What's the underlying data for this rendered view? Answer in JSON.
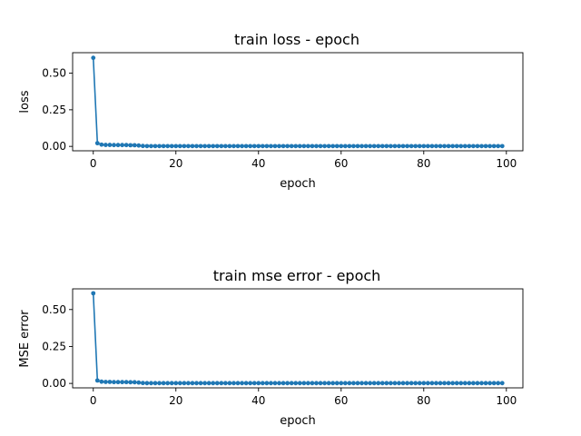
{
  "chart_data": [
    {
      "type": "line",
      "title": "train loss - epoch",
      "xlabel": "epoch",
      "ylabel": "loss",
      "xlim": [
        -5,
        104
      ],
      "ylim": [
        -0.03,
        0.64
      ],
      "xticks": [
        0,
        20,
        40,
        60,
        80,
        100
      ],
      "xtick_labels": [
        "0",
        "20",
        "40",
        "60",
        "80",
        "100"
      ],
      "yticks": [
        0.0,
        0.25,
        0.5
      ],
      "ytick_labels": [
        "0.00",
        "0.25",
        "0.50"
      ],
      "grid": false,
      "color": "#1f77b4",
      "series": [
        {
          "x": [
            0,
            1,
            2,
            3,
            4,
            5,
            6,
            7,
            8,
            9,
            10,
            11,
            12,
            13,
            14,
            15,
            16,
            17,
            18,
            19,
            20,
            21,
            22,
            23,
            24,
            25,
            26,
            27,
            28,
            29,
            30,
            31,
            32,
            33,
            34,
            35,
            36,
            37,
            38,
            39,
            40,
            41,
            42,
            43,
            44,
            45,
            46,
            47,
            48,
            49,
            50,
            51,
            52,
            53,
            54,
            55,
            56,
            57,
            58,
            59,
            60,
            61,
            62,
            63,
            64,
            65,
            66,
            67,
            68,
            69,
            70,
            71,
            72,
            73,
            74,
            75,
            76,
            77,
            78,
            79,
            80,
            81,
            82,
            83,
            84,
            85,
            86,
            87,
            88,
            89,
            90,
            91,
            92,
            93,
            94,
            95,
            96,
            97,
            98,
            99
          ],
          "values": [
            0.605,
            0.022,
            0.012,
            0.01,
            0.01,
            0.009,
            0.009,
            0.009,
            0.009,
            0.008,
            0.008,
            0.006,
            0.003,
            0.002,
            0.002,
            0.002,
            0.002,
            0.002,
            0.002,
            0.002,
            0.002,
            0.002,
            0.002,
            0.002,
            0.002,
            0.002,
            0.002,
            0.002,
            0.002,
            0.002,
            0.002,
            0.002,
            0.002,
            0.002,
            0.002,
            0.002,
            0.002,
            0.002,
            0.002,
            0.002,
            0.002,
            0.002,
            0.002,
            0.002,
            0.002,
            0.002,
            0.002,
            0.002,
            0.002,
            0.002,
            0.002,
            0.002,
            0.002,
            0.002,
            0.002,
            0.002,
            0.002,
            0.002,
            0.002,
            0.002,
            0.002,
            0.002,
            0.002,
            0.002,
            0.002,
            0.002,
            0.002,
            0.002,
            0.002,
            0.002,
            0.002,
            0.002,
            0.002,
            0.002,
            0.002,
            0.002,
            0.002,
            0.002,
            0.002,
            0.002,
            0.002,
            0.002,
            0.002,
            0.002,
            0.002,
            0.002,
            0.002,
            0.002,
            0.002,
            0.002,
            0.002,
            0.002,
            0.002,
            0.002,
            0.002,
            0.002,
            0.002,
            0.002,
            0.002,
            0.002
          ]
        }
      ]
    },
    {
      "type": "line",
      "title": "train mse error - epoch",
      "xlabel": "epoch",
      "ylabel": "MSE error",
      "xlim": [
        -5,
        104
      ],
      "ylim": [
        -0.03,
        0.64
      ],
      "xticks": [
        0,
        20,
        40,
        60,
        80,
        100
      ],
      "xtick_labels": [
        "0",
        "20",
        "40",
        "60",
        "80",
        "100"
      ],
      "yticks": [
        0.0,
        0.25,
        0.5
      ],
      "ytick_labels": [
        "0.00",
        "0.25",
        "0.50"
      ],
      "grid": false,
      "color": "#1f77b4",
      "series": [
        {
          "x": [
            0,
            1,
            2,
            3,
            4,
            5,
            6,
            7,
            8,
            9,
            10,
            11,
            12,
            13,
            14,
            15,
            16,
            17,
            18,
            19,
            20,
            21,
            22,
            23,
            24,
            25,
            26,
            27,
            28,
            29,
            30,
            31,
            32,
            33,
            34,
            35,
            36,
            37,
            38,
            39,
            40,
            41,
            42,
            43,
            44,
            45,
            46,
            47,
            48,
            49,
            50,
            51,
            52,
            53,
            54,
            55,
            56,
            57,
            58,
            59,
            60,
            61,
            62,
            63,
            64,
            65,
            66,
            67,
            68,
            69,
            70,
            71,
            72,
            73,
            74,
            75,
            76,
            77,
            78,
            79,
            80,
            81,
            82,
            83,
            84,
            85,
            86,
            87,
            88,
            89,
            90,
            91,
            92,
            93,
            94,
            95,
            96,
            97,
            98,
            99
          ],
          "values": [
            0.61,
            0.02,
            0.012,
            0.01,
            0.01,
            0.009,
            0.009,
            0.009,
            0.009,
            0.008,
            0.008,
            0.006,
            0.003,
            0.002,
            0.002,
            0.002,
            0.002,
            0.002,
            0.002,
            0.002,
            0.002,
            0.002,
            0.002,
            0.002,
            0.002,
            0.002,
            0.002,
            0.002,
            0.002,
            0.002,
            0.002,
            0.002,
            0.002,
            0.002,
            0.002,
            0.002,
            0.002,
            0.002,
            0.002,
            0.002,
            0.002,
            0.002,
            0.002,
            0.002,
            0.002,
            0.002,
            0.002,
            0.002,
            0.002,
            0.002,
            0.002,
            0.002,
            0.002,
            0.002,
            0.002,
            0.002,
            0.002,
            0.002,
            0.002,
            0.002,
            0.002,
            0.002,
            0.002,
            0.002,
            0.002,
            0.002,
            0.002,
            0.002,
            0.002,
            0.002,
            0.002,
            0.002,
            0.002,
            0.002,
            0.002,
            0.002,
            0.002,
            0.002,
            0.002,
            0.002,
            0.002,
            0.002,
            0.002,
            0.002,
            0.002,
            0.002,
            0.002,
            0.002,
            0.002,
            0.002,
            0.002,
            0.002,
            0.002,
            0.002,
            0.002,
            0.002,
            0.002,
            0.002,
            0.002,
            0.002
          ]
        }
      ]
    }
  ]
}
